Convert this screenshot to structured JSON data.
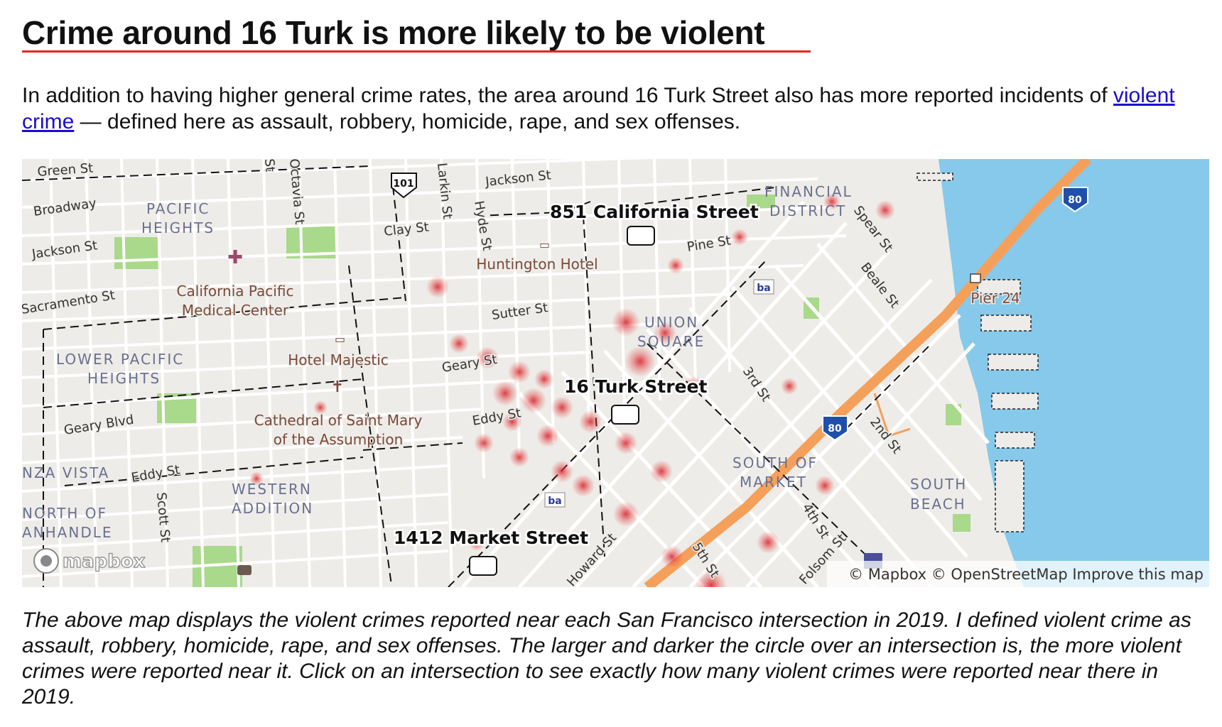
{
  "heading": "Crime around 16 Turk is more likely to be violent",
  "intro": {
    "before_link": "In addition to having higher general crime rates, the area around 16 Turk Street also has more reported incidents of ",
    "link_text": "violent crime",
    "after_link": " — defined here as assault, robbery, homicide, rape, and sex offenses."
  },
  "map": {
    "markers": [
      {
        "label": "851 California Street"
      },
      {
        "label": "16 Turk Street"
      },
      {
        "label": "1412 Market Street"
      }
    ],
    "districts": [
      "PACIFIC",
      "HEIGHTS",
      "FINANCIAL",
      "DISTRICT",
      "UNION",
      "SQUARE",
      "LOWER PACIFIC",
      "HEIGHTS",
      "SOUTH OF",
      "MARKET",
      "SOUTH",
      "BEACH",
      "WESTERN",
      "ADDITION",
      "NZA VISTA",
      "NORTH OF",
      "ANHANDLE"
    ],
    "streets": [
      "Green St",
      "Broadway",
      "Jackson St",
      "Sacramento St",
      "Clay St",
      "Jackson St",
      "Pine St",
      "Sutter St",
      "Geary St",
      "Eddy St",
      "Geary Blvd",
      "Eddy St",
      "Hyde St",
      "Larkin St",
      "Spear St",
      "Beale St",
      "3rd St",
      "2nd St",
      "4th St",
      "5th St",
      "Howard St",
      "Folsom St",
      "Scott St",
      "Octavia St",
      "St"
    ],
    "pois": [
      "California Pacific",
      "Medical Center",
      "Huntington Hotel",
      "Hotel Majestic",
      "Cathedral of Saint Mary",
      "of the Assumption",
      "Pier 24"
    ],
    "highway_shields": [
      "101",
      "80",
      "80"
    ],
    "logo": "mapbox",
    "attribution": "© Mapbox © OpenStreetMap Improve this map",
    "colors": {
      "water": "#87c9ea",
      "land": "#eeece8",
      "park": "#a9d98a",
      "freeway": "#f5a05a",
      "crime": "#e03030"
    }
  },
  "caption": "The above map displays the violent crimes reported near each San Francisco intersection in 2019. I defined violent crime as assault, robbery, homicide, rape, and sex offenses. The larger and darker the circle over an intersection is, the more violent crimes were reported near it. Click on an intersection to see exactly how many violent crimes were reported near there in 2019."
}
